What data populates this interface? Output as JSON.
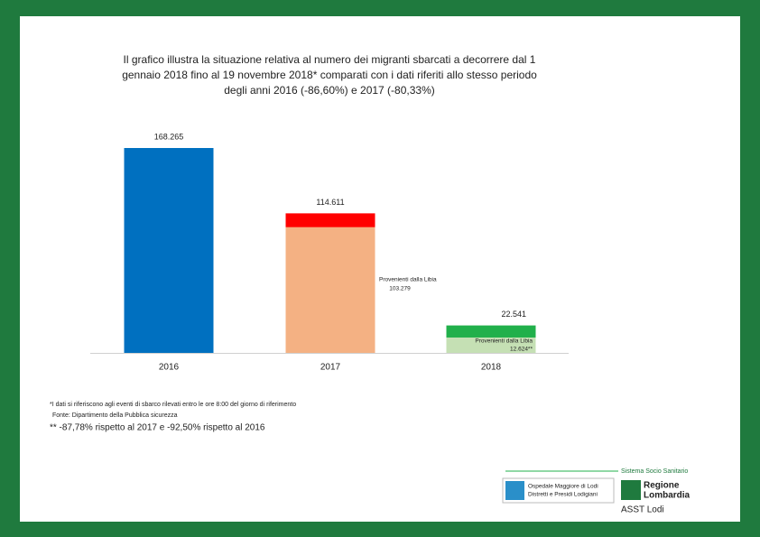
{
  "chart_data": {
    "type": "bar",
    "title": [
      "Il grafico illustra la situazione relativa al numero dei migranti sbarcati a decorrere dal 1",
      "gennaio 2018 fino al 19 novembre 2018* comparati con i dati riferiti allo stesso periodo",
      "degli anni 2016 (-86,60%) e 2017 (-80,33%)"
    ],
    "categories": [
      "2016",
      "2017",
      "2018"
    ],
    "values": [
      168265,
      114611,
      22541
    ],
    "value_labels": [
      "168.265",
      "114.611",
      "22.541"
    ],
    "colors": [
      "#0070c0",
      "#ff0000",
      "#21b04b"
    ],
    "libia": {
      "name": "Provenienti dalla Libia",
      "values": [
        null,
        103279,
        12624
      ],
      "value_labels": [
        null,
        "103.279",
        "12.624**"
      ],
      "colors": [
        null,
        "#f4b183",
        "#c5e0b4"
      ]
    },
    "footnotes": [
      "*I dati si riferiscono agli eventi di sbarco rilevati entro le ore 8:00 del giorno di riferimento",
      "Fonte: Dipartimento della Pubblica sicurezza",
      "** -87,78% rispetto al 2017 e -92,50% rispetto al 2016"
    ]
  },
  "logos": {
    "system": "Sistema Socio Sanitario",
    "hospital": [
      "Ospedale Maggiore di Lodi",
      "Distretti e Presidi Lodigiani"
    ],
    "region": [
      "Regione",
      "Lombardia"
    ],
    "asst": "ASST Lodi"
  }
}
